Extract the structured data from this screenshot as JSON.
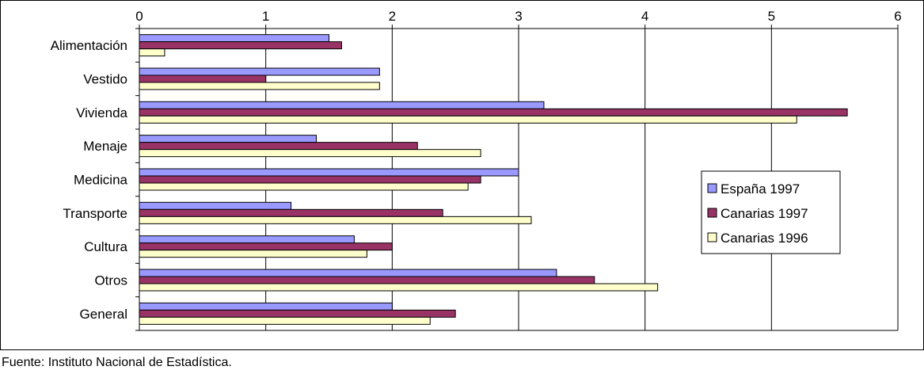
{
  "chart_data": {
    "type": "bar",
    "orientation": "horizontal",
    "categories": [
      "Alimentación",
      "Vestido",
      "Vivienda",
      "Menaje",
      "Medicina",
      "Transporte",
      "Cultura",
      "Otros",
      "General"
    ],
    "series": [
      {
        "name": "España 1997",
        "color": "#9999ff",
        "values": [
          1.5,
          1.9,
          3.2,
          1.4,
          3.0,
          1.2,
          1.7,
          3.3,
          2.0
        ]
      },
      {
        "name": "Canarias 1997",
        "color": "#993366",
        "values": [
          1.6,
          1.0,
          5.6,
          2.2,
          2.7,
          2.4,
          2.0,
          3.6,
          2.5
        ]
      },
      {
        "name": "Canarias 1996",
        "color": "#ffffcc",
        "values": [
          0.2,
          1.9,
          5.2,
          2.7,
          2.6,
          3.1,
          1.8,
          4.1,
          2.3
        ]
      }
    ],
    "xlim": [
      0,
      6
    ],
    "xticks": [
      "0",
      "1",
      "2",
      "3",
      "4",
      "5",
      "6"
    ],
    "x_axis_position": "top",
    "grid": true,
    "legend": "right"
  },
  "footer": {
    "source": "Fuente: Instituto Nacional de Estadística."
  }
}
